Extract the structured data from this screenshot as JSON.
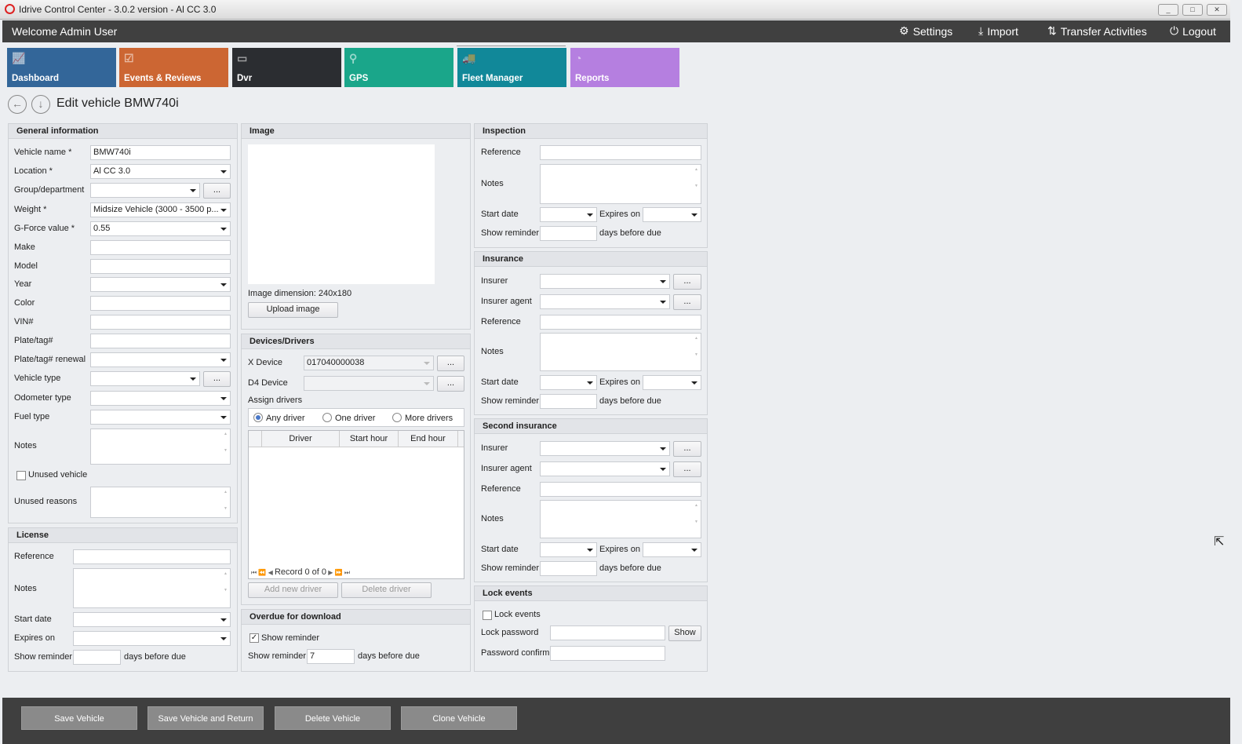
{
  "window": {
    "title": "Idrive Control Center - 3.0.2 version - Al CC 3.0",
    "minimize": "_",
    "maximize": "□",
    "close": "✕"
  },
  "appbar": {
    "welcome": "Welcome Admin User",
    "settings": "Settings",
    "import": "Import",
    "transfer": "Transfer Activities",
    "logout": "Logout"
  },
  "tiles": [
    {
      "label": "Dashboard",
      "color": "#336699",
      "icon": "chart-icon"
    },
    {
      "label": "Events & Reviews",
      "color": "#cc6633",
      "icon": "clipboard-icon"
    },
    {
      "label": "Dvr",
      "color": "#2b2d31",
      "icon": "dvr-icon"
    },
    {
      "label": "GPS",
      "color": "#1aa68a",
      "icon": "map-pin-icon"
    },
    {
      "label": "Fleet Manager",
      "color": "#118899",
      "icon": "fleet-icon"
    },
    {
      "label": "Reports",
      "color": "#b57fe0",
      "icon": "pie-icon"
    }
  ],
  "page": {
    "title": "Edit vehicle BMW740i"
  },
  "general": {
    "title": "General information",
    "vehicle_name_label": "Vehicle name *",
    "vehicle_name": "BMW740i",
    "location_label": "Location *",
    "location": "Al CC 3.0",
    "group_label": "Group/department",
    "weight_label": "Weight *",
    "weight": "Midsize Vehicle (3000 - 3500 p...",
    "gforce_label": "G-Force value *",
    "gforce": "0.55",
    "make_label": "Make",
    "model_label": "Model",
    "year_label": "Year",
    "color_label": "Color",
    "vin_label": "VIN#",
    "plate_label": "Plate/tag#",
    "plate_renewal_label": "Plate/tag# renewal",
    "vehicle_type_label": "Vehicle type",
    "odometer_label": "Odometer type",
    "fuel_label": "Fuel type",
    "notes_label": "Notes",
    "unused_label": "Unused vehicle",
    "unused_reasons_label": "Unused reasons",
    "more": "..."
  },
  "license": {
    "title": "License",
    "reference": "Reference",
    "notes": "Notes",
    "start_date": "Start date",
    "expires_on": "Expires on",
    "show_reminder": "Show reminder",
    "days_before_due": "days before due"
  },
  "image": {
    "title": "Image",
    "dimension_label": "Image dimension:",
    "dimension": "240x180",
    "upload": "Upload image"
  },
  "devices": {
    "title": "Devices/Drivers",
    "x_device_label": "X Device",
    "x_device": "017040000038",
    "d4_device_label": "D4 Device",
    "assign_label": "Assign drivers",
    "any": "Any driver",
    "one": "One driver",
    "more": "More drivers",
    "columns": [
      "Driver",
      "Start hour",
      "End hour"
    ],
    "record": "Record 0 of 0",
    "add": "Add new driver",
    "delete": "Delete driver"
  },
  "overdue": {
    "title": "Overdue for download",
    "show_reminder_check": "Show reminder",
    "show_reminder": "Show reminder",
    "days": "7",
    "days_before_due": "days before due"
  },
  "inspection": {
    "title": "Inspection",
    "reference": "Reference",
    "notes": "Notes",
    "start_date": "Start date",
    "expires_on": "Expires on",
    "show_reminder": "Show reminder",
    "days_before_due": "days before due"
  },
  "insurance": {
    "title": "Insurance",
    "insurer": "Insurer",
    "agent": "Insurer agent",
    "reference": "Reference",
    "notes": "Notes",
    "start_date": "Start date",
    "expires_on": "Expires on",
    "show_reminder": "Show reminder",
    "days_before_due": "days before due"
  },
  "second_insurance": {
    "title": "Second insurance",
    "insurer": "Insurer",
    "agent": "Insurer agent",
    "reference": "Reference",
    "notes": "Notes",
    "start_date": "Start date",
    "expires_on": "Expires on",
    "show_reminder": "Show reminder",
    "days_before_due": "days before due"
  },
  "lock": {
    "title": "Lock events",
    "check": "Lock events",
    "password": "Lock password",
    "confirm": "Password confirm",
    "show": "Show"
  },
  "footer": {
    "save": "Save Vehicle",
    "save_return": "Save Vehicle and Return",
    "delete": "Delete Vehicle",
    "clone": "Clone Vehicle"
  }
}
